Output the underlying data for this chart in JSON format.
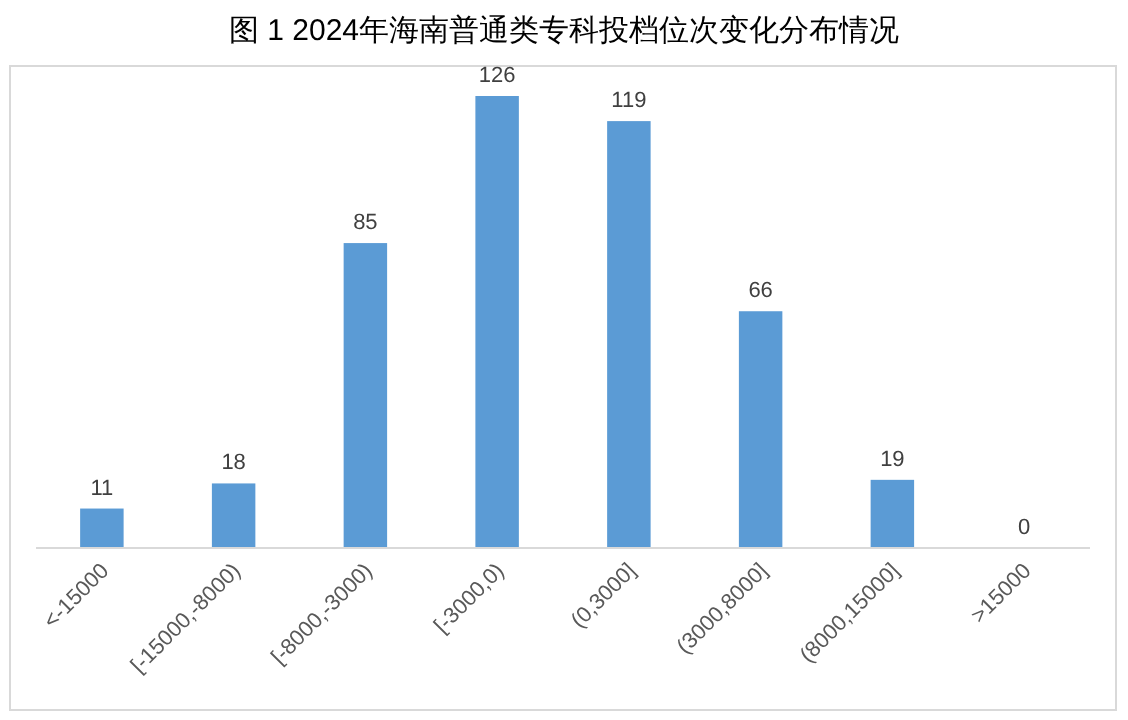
{
  "chart_data": {
    "type": "bar",
    "title": "图 1 2024年海南普通类专科投档位次变化分布情况",
    "categories": [
      "<-15000",
      "[-15000,-8000)",
      "[-8000,-3000)",
      "[-3000,0)",
      "(0,3000]",
      "(3000,8000]",
      "(8000,15000]",
      ">15000"
    ],
    "values": [
      11,
      18,
      85,
      126,
      119,
      66,
      19,
      0
    ],
    "color": "#5b9bd5",
    "data_labels": true
  }
}
